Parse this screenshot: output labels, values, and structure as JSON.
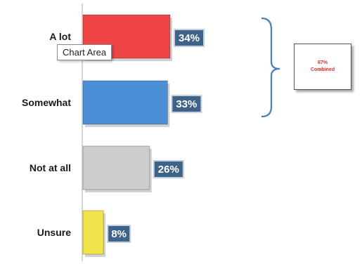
{
  "chart_data": {
    "type": "bar",
    "orientation": "horizontal",
    "categories": [
      "A lot",
      "Somewhat",
      "Not at all",
      "Unsure"
    ],
    "values": [
      34,
      33,
      26,
      8
    ],
    "value_labels": [
      "34%",
      "33%",
      "26%",
      "8%"
    ],
    "bar_colors": [
      "#ee4444",
      "#4a90d6",
      "#cccccc",
      "#f2e34a"
    ],
    "xlim": [
      0,
      100
    ],
    "grid": false,
    "annotations": {
      "bracket_spans": [
        "A lot",
        "Somewhat"
      ],
      "combined_value": "67%",
      "combined_label": "Combined"
    }
  },
  "tooltip": {
    "text": "Chart Area"
  },
  "colors": {
    "label_bg": "#3f6289",
    "label_border": "#c3d0df",
    "bracket": "#4a7fc0",
    "combined_text": "#e0322c"
  }
}
